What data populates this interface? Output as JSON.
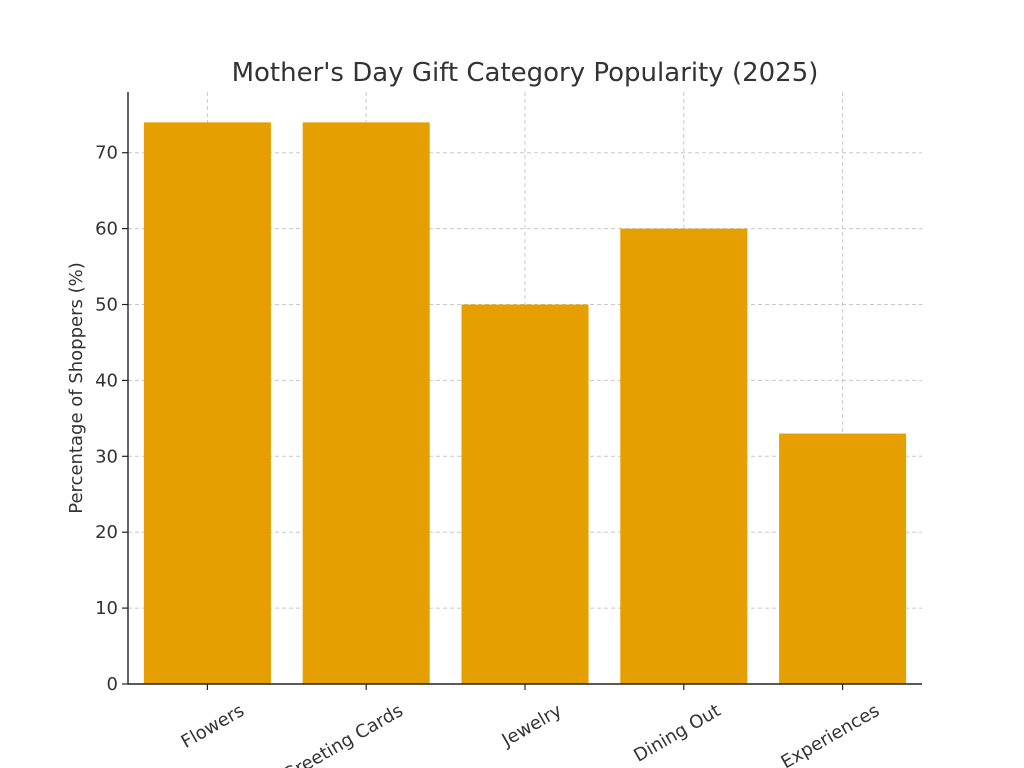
{
  "chart_data": {
    "type": "bar",
    "title": "Mother's Day Gift Category Popularity (2025)",
    "xlabel": "",
    "ylabel": "Percentage of Shoppers (%)",
    "categories": [
      "Flowers",
      "Greeting Cards",
      "Jewelry",
      "Dining Out",
      "Experiences"
    ],
    "values": [
      74,
      74,
      50,
      60,
      33
    ],
    "ylim": [
      0,
      78
    ],
    "yticks": [
      0,
      10,
      20,
      30,
      40,
      50,
      60,
      70
    ],
    "bar_color": "#E69F00",
    "grid": true
  }
}
